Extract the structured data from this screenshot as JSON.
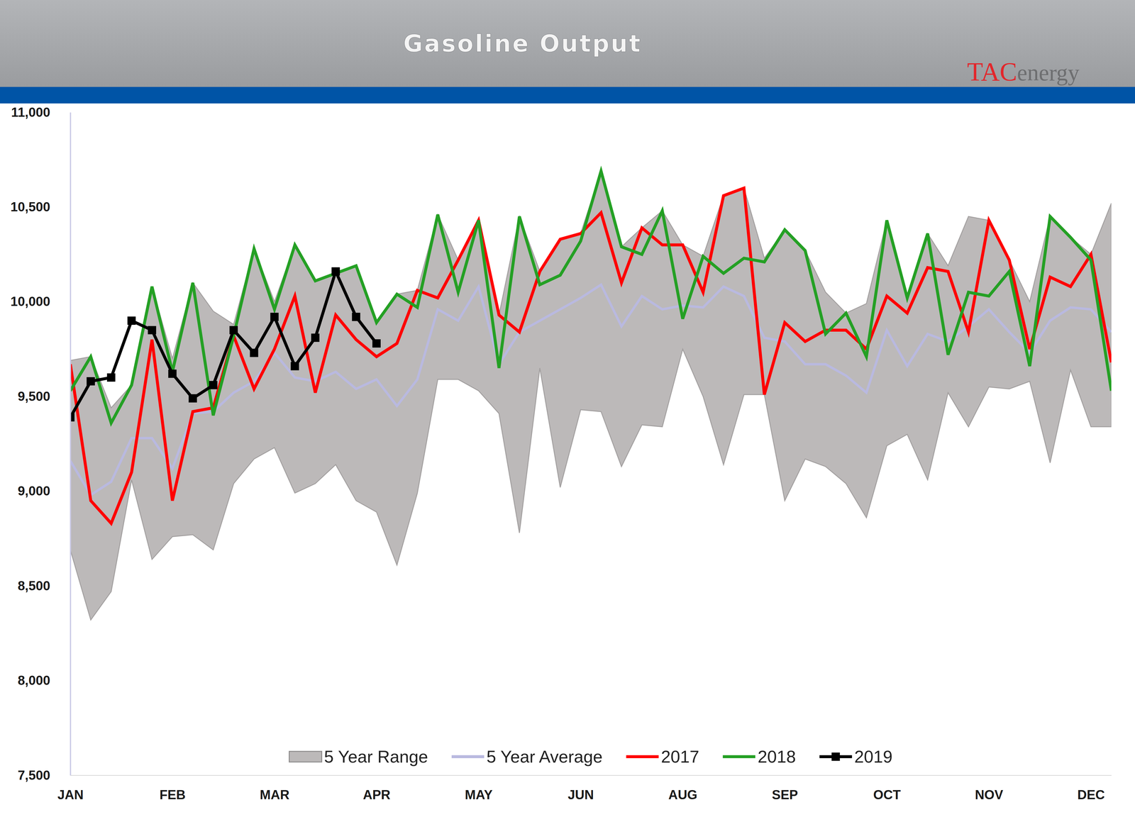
{
  "chart_data": {
    "type": "line",
    "title": "Gasoline Output",
    "logo": [
      "TAC",
      "energy"
    ],
    "categories": [
      "JAN",
      null,
      null,
      null,
      null,
      "FEB",
      null,
      null,
      null,
      null,
      "MAR",
      null,
      null,
      null,
      null,
      "APR",
      null,
      null,
      null,
      null,
      "MAY",
      null,
      null,
      null,
      null,
      "JUN",
      null,
      null,
      null,
      null,
      "AUG",
      null,
      null,
      null,
      null,
      "SEP",
      null,
      null,
      null,
      null,
      "OCT",
      null,
      null,
      null,
      null,
      "NOV",
      null,
      null,
      null,
      null,
      "DEC",
      null
    ],
    "ylim": [
      7500,
      11000
    ],
    "yticks": [
      {
        "value": 7500,
        "label": "7,500"
      },
      {
        "value": 8000,
        "label": "8,000"
      },
      {
        "value": 8500,
        "label": "8,500"
      },
      {
        "value": 9000,
        "label": "9,000"
      },
      {
        "value": 9500,
        "label": "9,500"
      },
      {
        "value": 10000,
        "label": "10,000"
      },
      {
        "value": 10500,
        "label": "10,500"
      },
      {
        "value": 11000,
        "label": "11,000"
      }
    ],
    "grid": false,
    "legend": "bottom",
    "series": [
      {
        "name": "5 Year Range",
        "type": "area",
        "color": "#bcb9b9",
        "lower": [
          8690,
          8320,
          8470,
          9060,
          8640,
          8760,
          8770,
          8690,
          9040,
          9170,
          9230,
          8990,
          9040,
          9140,
          8950,
          8890,
          8610,
          8990,
          9590,
          9590,
          9530,
          9410,
          8780,
          9650,
          9020,
          9430,
          9420,
          9130,
          9350,
          9340,
          9750,
          9500,
          9140,
          9510,
          9510,
          8950,
          9170,
          9130,
          9040,
          8860,
          9240,
          9300,
          9060,
          9520,
          9340,
          9550,
          9540,
          9580,
          9150,
          9640,
          9340,
          9340
        ],
        "values": [
          9690,
          9710,
          9440,
          9560,
          10080,
          9700,
          10100,
          9950,
          9880,
          10280,
          10000,
          10300,
          10110,
          10150,
          10190,
          9890,
          10040,
          10060,
          10460,
          10220,
          10430,
          9930,
          10450,
          10160,
          10330,
          10360,
          10690,
          10290,
          10390,
          10480,
          10300,
          10240,
          10560,
          10600,
          10230,
          10380,
          10270,
          10050,
          9940,
          9990,
          10430,
          10020,
          10360,
          10190,
          10450,
          10430,
          10220,
          10000,
          10450,
          10340,
          10250,
          10520
        ]
      },
      {
        "name": "5 Year Average",
        "type": "line",
        "color": "#b9b9e0",
        "values": [
          9160,
          8980,
          9050,
          9280,
          9280,
          9120,
          9410,
          9420,
          9520,
          9580,
          9730,
          9600,
          9580,
          9630,
          9540,
          9590,
          9450,
          9590,
          9960,
          9900,
          10080,
          9670,
          9840,
          9900,
          9960,
          10020,
          10090,
          9870,
          10030,
          9960,
          9980,
          9970,
          10080,
          10030,
          9810,
          9790,
          9670,
          9670,
          9610,
          9520,
          9850,
          9660,
          9830,
          9790,
          9870,
          9960,
          9840,
          9730,
          9900,
          9970,
          9960,
          9840
        ]
      },
      {
        "name": "2017",
        "type": "line",
        "color": "#ff0000",
        "values": [
          9670,
          8950,
          8830,
          9100,
          9800,
          8950,
          9420,
          9440,
          9820,
          9540,
          9750,
          10030,
          9520,
          9930,
          9800,
          9710,
          9780,
          10060,
          10020,
          10220,
          10430,
          9930,
          9840,
          10160,
          10330,
          10360,
          10470,
          10100,
          10390,
          10300,
          10300,
          10050,
          10560,
          10600,
          9510,
          9890,
          9790,
          9850,
          9850,
          9750,
          10030,
          9940,
          10180,
          10160,
          9840,
          10430,
          10220,
          9750,
          10130,
          10080,
          10250,
          9680
        ]
      },
      {
        "name": "2018",
        "type": "line",
        "color": "#24a024",
        "values": [
          9530,
          9710,
          9360,
          9560,
          10080,
          9630,
          10100,
          9400,
          9820,
          10280,
          9960,
          10300,
          10110,
          10150,
          10190,
          9890,
          10040,
          9970,
          10460,
          10050,
          10430,
          9650,
          10450,
          10090,
          10140,
          10320,
          10690,
          10290,
          10250,
          10480,
          9910,
          10240,
          10150,
          10230,
          10210,
          10380,
          10270,
          9830,
          9940,
          9710,
          10430,
          10020,
          10360,
          9720,
          10050,
          10030,
          10160,
          9660,
          10450,
          10340,
          10220,
          9530
        ]
      },
      {
        "name": "2019",
        "type": "line",
        "color": "#000000",
        "marker": "square",
        "values": [
          9390,
          9580,
          9600,
          9900,
          9850,
          9620,
          9490,
          9560,
          9850,
          9730,
          9920,
          9660,
          9810,
          10160,
          9920,
          9780,
          null,
          null,
          null,
          null,
          null,
          null,
          null,
          null,
          null,
          null,
          null,
          null,
          null,
          null,
          null,
          null,
          null,
          null,
          null,
          null,
          null,
          null,
          null,
          null,
          null,
          null,
          null,
          null,
          null,
          null,
          null,
          null,
          null,
          null,
          null,
          null
        ]
      }
    ]
  }
}
